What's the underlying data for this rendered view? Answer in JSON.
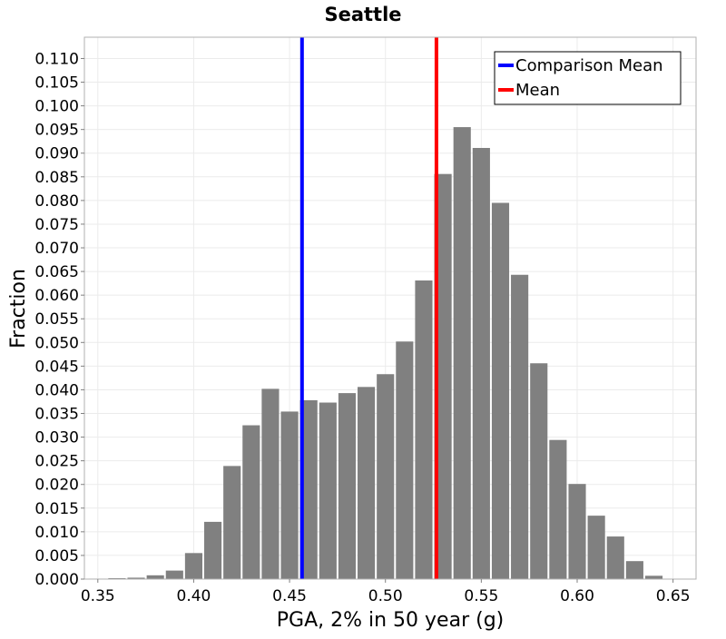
{
  "chart_data": {
    "type": "bar",
    "title": "Seattle",
    "xlabel": "PGA, 2% in 50 year (g)",
    "ylabel": "Fraction",
    "xlim": [
      0.343,
      0.662
    ],
    "ylim": [
      0,
      0.1145
    ],
    "grid": true,
    "legend_position": "top-right",
    "x_ticks": [
      "0.35",
      "0.40",
      "0.45",
      "0.50",
      "0.55",
      "0.60",
      "0.65"
    ],
    "y_ticks": [
      "0.000",
      "0.005",
      "0.010",
      "0.015",
      "0.020",
      "0.025",
      "0.030",
      "0.035",
      "0.040",
      "0.045",
      "0.050",
      "0.055",
      "0.060",
      "0.065",
      "0.070",
      "0.075",
      "0.080",
      "0.085",
      "0.090",
      "0.095",
      "0.100",
      "0.105",
      "0.110"
    ],
    "bin_width": 0.01,
    "bins": [
      {
        "x": 0.35,
        "value": 0.0001
      },
      {
        "x": 0.36,
        "value": 0.0002
      },
      {
        "x": 0.37,
        "value": 0.0003
      },
      {
        "x": 0.38,
        "value": 0.0008
      },
      {
        "x": 0.39,
        "value": 0.0018
      },
      {
        "x": 0.4,
        "value": 0.0055
      },
      {
        "x": 0.41,
        "value": 0.0121
      },
      {
        "x": 0.42,
        "value": 0.0239
      },
      {
        "x": 0.43,
        "value": 0.0325
      },
      {
        "x": 0.44,
        "value": 0.0402
      },
      {
        "x": 0.45,
        "value": 0.0354
      },
      {
        "x": 0.46,
        "value": 0.0378
      },
      {
        "x": 0.47,
        "value": 0.0373
      },
      {
        "x": 0.48,
        "value": 0.0393
      },
      {
        "x": 0.49,
        "value": 0.0406
      },
      {
        "x": 0.5,
        "value": 0.0433
      },
      {
        "x": 0.51,
        "value": 0.0502
      },
      {
        "x": 0.52,
        "value": 0.0631
      },
      {
        "x": 0.53,
        "value": 0.0856
      },
      {
        "x": 0.54,
        "value": 0.0955
      },
      {
        "x": 0.55,
        "value": 0.0911
      },
      {
        "x": 0.56,
        "value": 0.0795
      },
      {
        "x": 0.57,
        "value": 0.0643
      },
      {
        "x": 0.58,
        "value": 0.0456
      },
      {
        "x": 0.59,
        "value": 0.0294
      },
      {
        "x": 0.6,
        "value": 0.0201
      },
      {
        "x": 0.61,
        "value": 0.0134
      },
      {
        "x": 0.62,
        "value": 0.009
      },
      {
        "x": 0.63,
        "value": 0.0038
      },
      {
        "x": 0.64,
        "value": 0.0007
      }
    ],
    "bar_color": "#808080",
    "lines": [
      {
        "name": "Comparison Mean",
        "x": 0.4565,
        "color": "#0000ff"
      },
      {
        "name": "Mean",
        "x": 0.5266,
        "color": "#ff0000"
      }
    ]
  }
}
